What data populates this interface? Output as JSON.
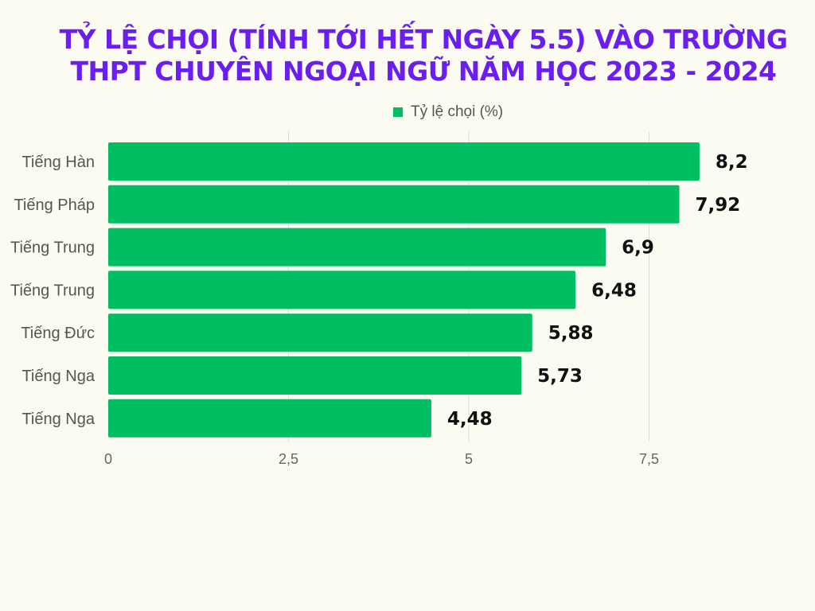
{
  "chart_data": {
    "type": "bar",
    "orientation": "horizontal",
    "title": "TỶ LỆ CHỌI (TÍNH TỚI HẾT NGÀY 5.5) VÀO TRƯỜNG THPT CHUYÊN NGOẠI NGỮ NĂM HỌC 2023 - 2024",
    "categories": [
      "Tiếng Hàn",
      "Tiếng Pháp",
      "Tiếng Trung",
      "Tiếng Trung",
      "Tiếng Đức",
      "Tiếng Nga",
      "Tiếng Nga"
    ],
    "series": [
      {
        "name": "Tỷ lệ chọi (%)",
        "values": [
          8.2,
          7.92,
          6.9,
          6.48,
          5.88,
          5.73,
          4.48
        ],
        "value_labels": [
          "8,2",
          "7,92",
          "6,9",
          "6,48",
          "5,88",
          "5,73",
          "4,48"
        ],
        "color": "#00bf63"
      }
    ],
    "xlim": [
      0,
      8.2
    ],
    "x_ticks": [
      0,
      2.5,
      5,
      7.5
    ],
    "x_tick_labels": [
      "0",
      "2,5",
      "5",
      "7,5"
    ],
    "grid": true,
    "legend_position": "top"
  },
  "colors": {
    "title": "#6a1ef0",
    "bar": "#00bf63",
    "background": "#fbfbf2",
    "grid": "#dddddd"
  }
}
